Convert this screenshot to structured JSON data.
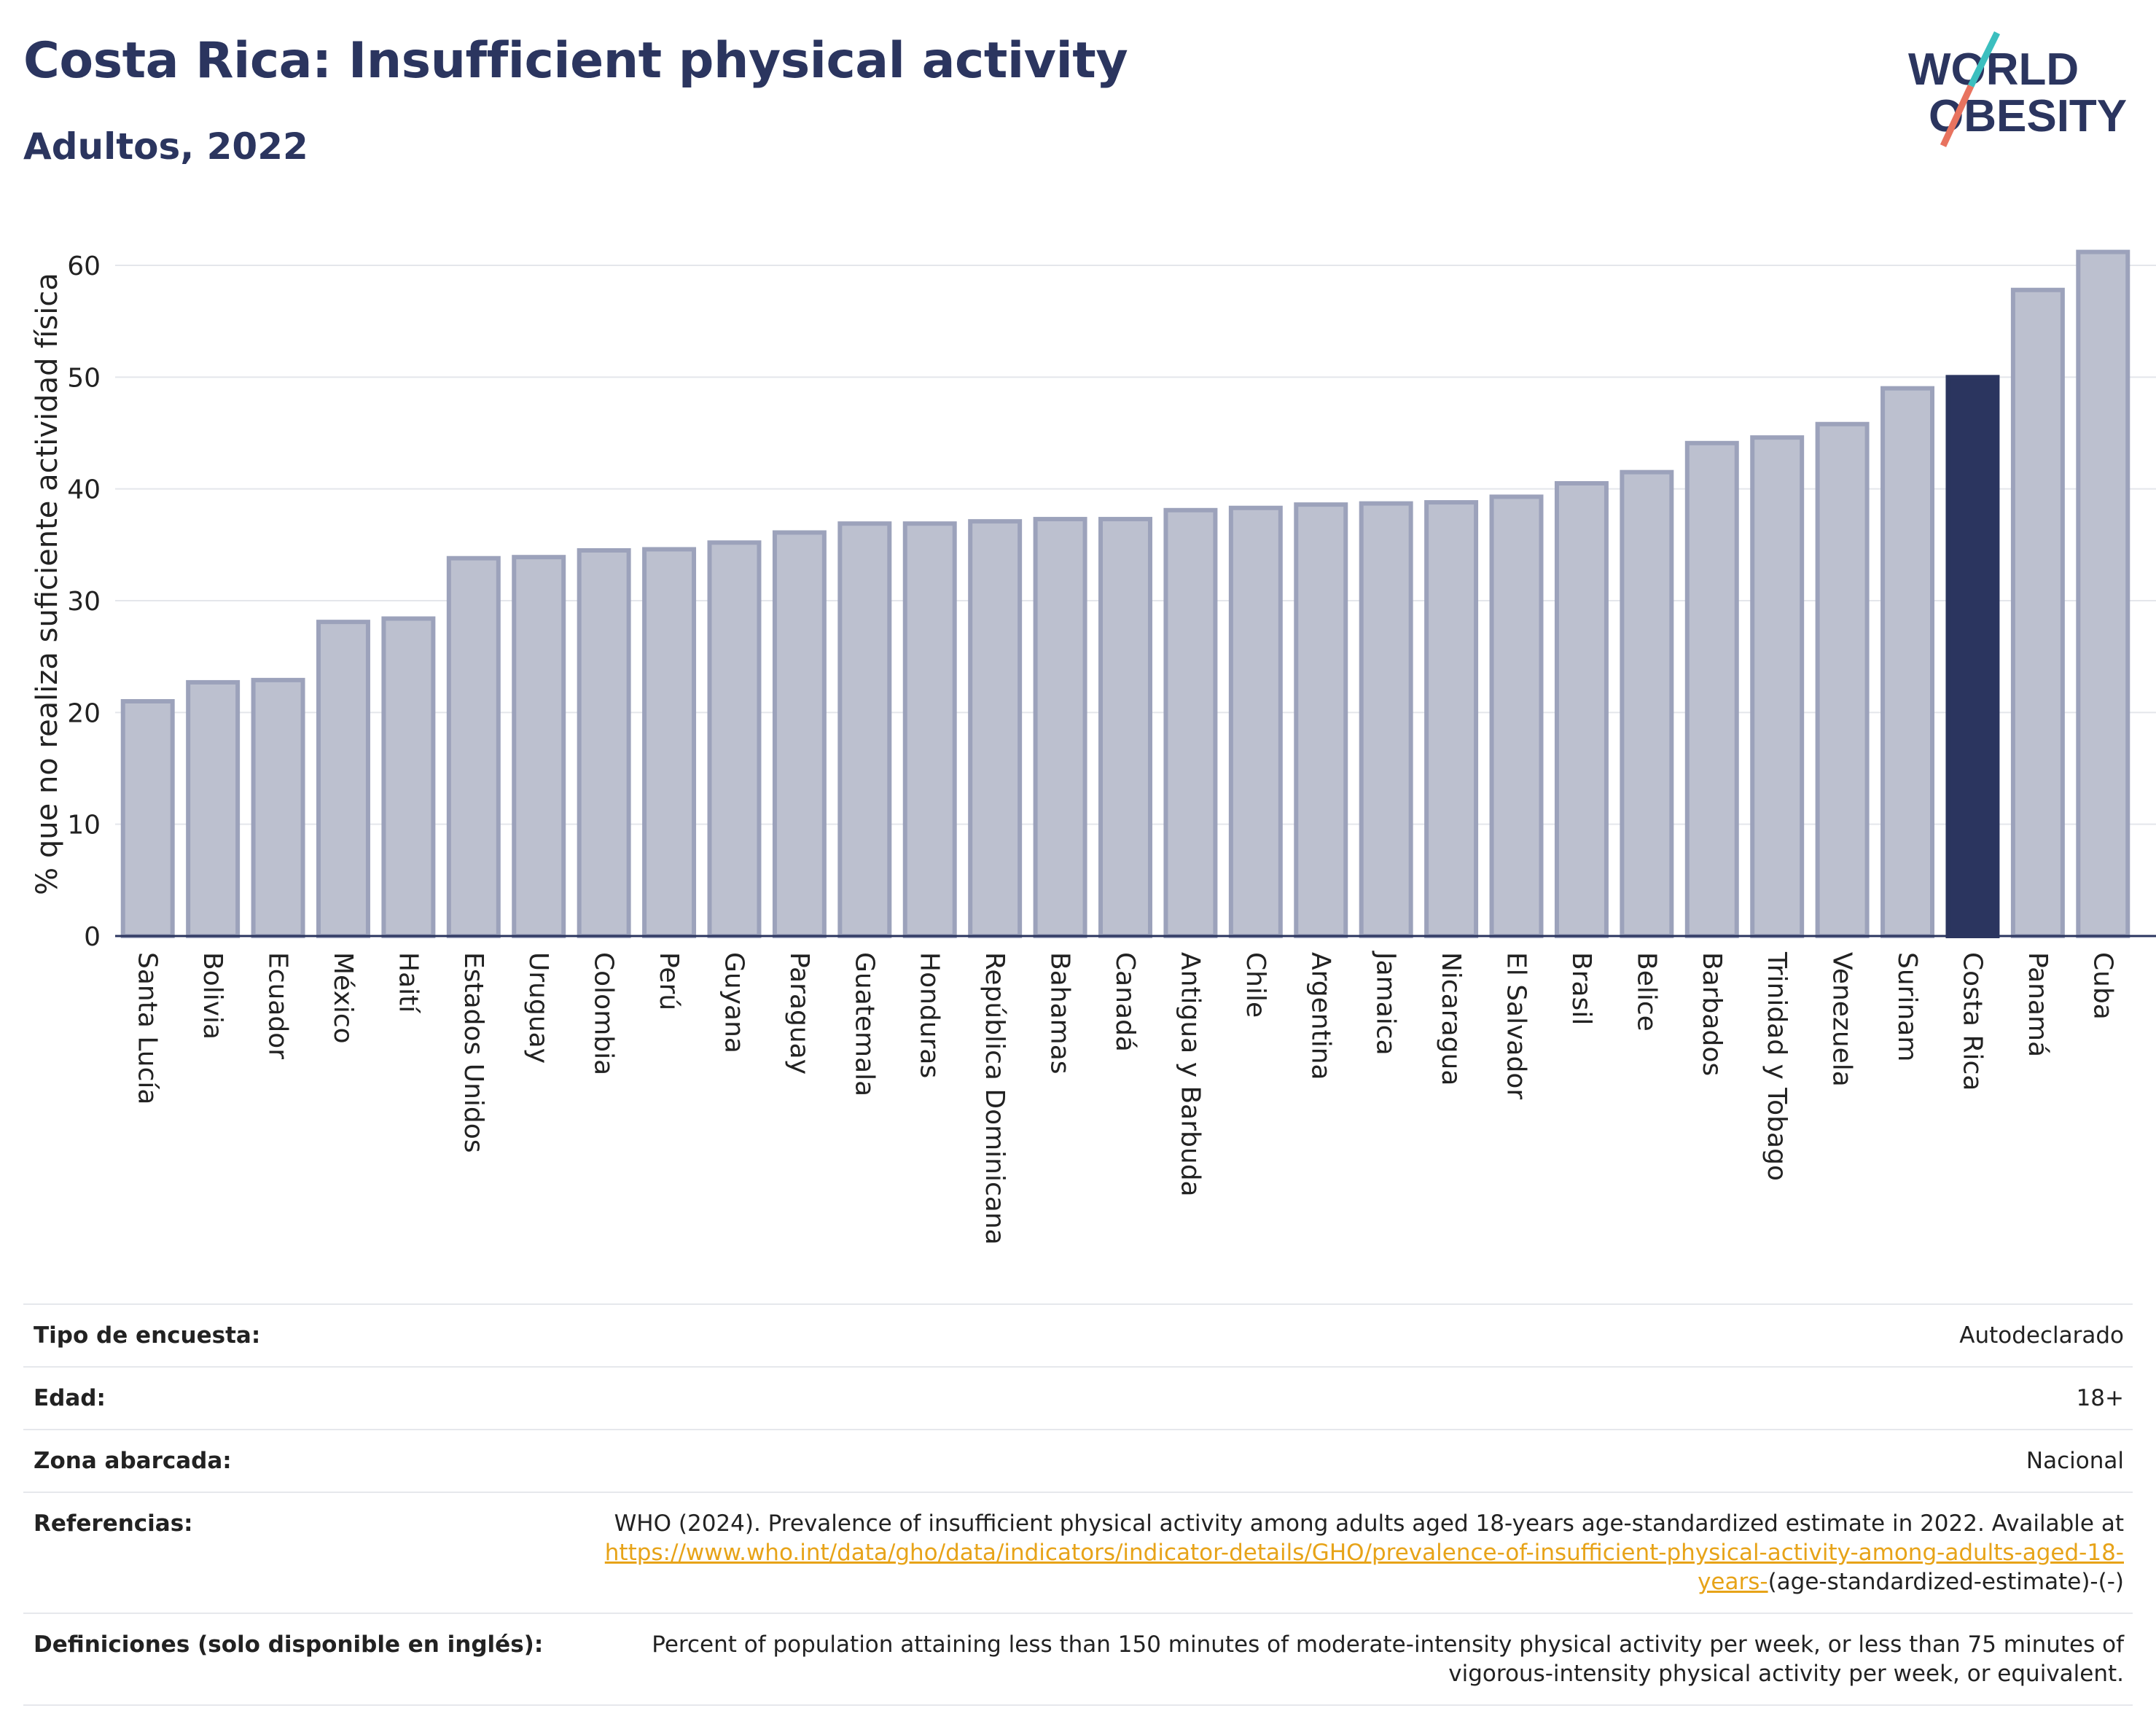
{
  "header": {
    "title": "Costa Rica: Insufficient physical activity",
    "subtitle": "Adultos, 2022"
  },
  "logo": {
    "line1": "WORLD",
    "line2": "OBESITY",
    "colors": {
      "text": "#2b355f",
      "slash_teal": "#3bbfbf",
      "slash_coral": "#e8735f"
    }
  },
  "chart_data": {
    "type": "bar",
    "title": "",
    "xlabel": "",
    "ylabel": "% que no realiza suficiente actividad física",
    "ylim": [
      0,
      63
    ],
    "yticks": [
      0,
      10,
      20,
      30,
      40,
      50,
      60
    ],
    "grid": true,
    "highlight": "Costa Rica",
    "colors": {
      "bar": "#bcc0cf",
      "bar_edge": "#9ca2bb",
      "highlight": "#2b355f",
      "grid": "#e4e6eb"
    },
    "categories": [
      "Santa Lucía",
      "Bolivia",
      "Ecuador",
      "México",
      "Haití",
      "Estados Unidos",
      "Uruguay",
      "Colombia",
      "Perú",
      "Guyana",
      "Paraguay",
      "Guatemala",
      "Honduras",
      "República Dominicana",
      "Bahamas",
      "Canadá",
      "Antigua y Barbuda",
      "Chile",
      "Argentina",
      "Jamaica",
      "Nicaragua",
      "El Salvador",
      "Brasil",
      "Belice",
      "Barbados",
      "Trinidad y Tobago",
      "Venezuela",
      "Surinam",
      "Costa Rica",
      "Panamá",
      "Cuba"
    ],
    "values": [
      21.0,
      22.7,
      22.9,
      28.1,
      28.4,
      33.8,
      33.9,
      34.5,
      34.6,
      35.2,
      36.1,
      36.9,
      36.9,
      37.1,
      37.3,
      37.3,
      38.1,
      38.3,
      38.6,
      38.7,
      38.8,
      39.3,
      40.5,
      41.5,
      44.1,
      44.6,
      45.8,
      49.0,
      50.0,
      57.8,
      61.2
    ]
  },
  "info": {
    "rows": [
      {
        "key": "Tipo de encuesta:",
        "value": "Autodeclarado"
      },
      {
        "key": "Edad:",
        "value": "18+"
      },
      {
        "key": "Zona abarcada:",
        "value": "Nacional"
      }
    ],
    "references": {
      "key": "Referencias:",
      "text": "WHO (2024). Prevalence of insufficient physical activity among adults aged 18-years age-standardized estimate in 2022. Available at",
      "link": "https://www.who.int/data/gho/data/indicators/indicator-details/GHO/prevalence-of-insufficient-physical-activity-among-adults-aged-18-years-",
      "suffix": "(age-standardized-estimate)-(-)"
    },
    "definitions": {
      "key": "Definiciones (solo disponible en inglés):",
      "value": "Percent of population attaining less than 150 minutes of moderate-intensity physical activity per week, or less than 75 minutes of vigorous-intensity physical activity per week, or equivalent."
    }
  }
}
